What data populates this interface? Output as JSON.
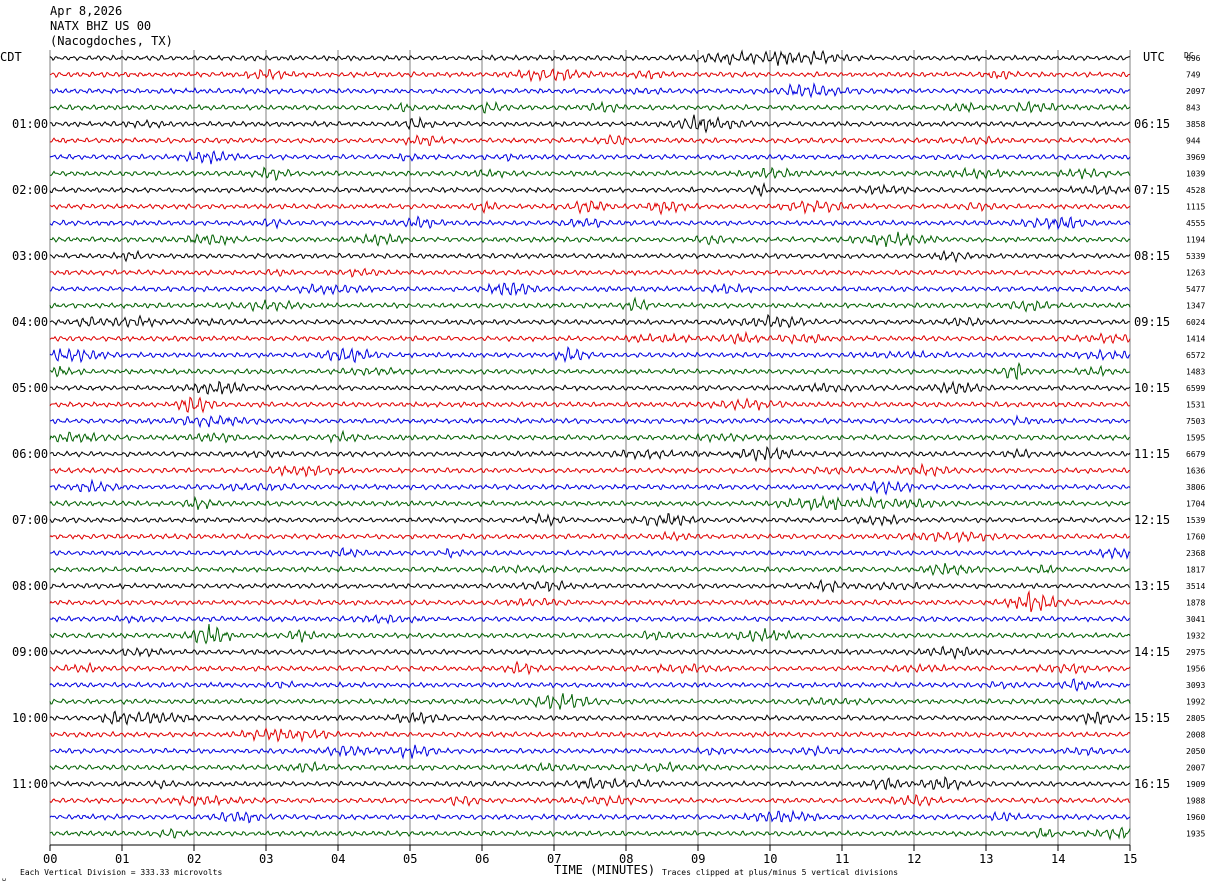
{
  "header": {
    "date": "Apr 8,2026",
    "station": "NATX BHZ US 00",
    "location": "(Nacogdoches, TX)"
  },
  "left_timezone": "CDT",
  "right_timezone": "UTC",
  "dc_label": "DC",
  "footer": {
    "division_note": "Each Vertical Division =  333.33 microvolts",
    "clip_note": "Traces clipped at plus/minus 5 vertical divisions",
    "corner_mark": "␣"
  },
  "colors": {
    "trace_cycle": [
      "#000000",
      "#e00000",
      "#0000e0",
      "#006000"
    ],
    "grid": "#808080"
  },
  "chart_data": {
    "type": "line",
    "subtype": "helicorder",
    "xlabel": "TIME (MINUTES)",
    "x_ticks": [
      "00",
      "01",
      "02",
      "03",
      "04",
      "05",
      "06",
      "07",
      "08",
      "09",
      "10",
      "11",
      "12",
      "13",
      "14",
      "15"
    ],
    "xlim": [
      0,
      15
    ],
    "rows": 48,
    "row_minutes": 15,
    "left_hour_labels": [
      "01:00",
      "02:00",
      "03:00",
      "04:00",
      "05:00",
      "06:00",
      "07:00",
      "08:00",
      "09:00",
      "10:00",
      "11:00"
    ],
    "right_hour_labels": [
      "06:15",
      "07:15",
      "08:15",
      "09:15",
      "10:15",
      "11:15",
      "12:15",
      "13:15",
      "14:15",
      "15:15",
      "16:15"
    ],
    "hour_label_first_row": 4,
    "hour_label_row_step": 4,
    "dc_offsets": [
      "696",
      "749",
      "2097",
      "843",
      "3858",
      "944",
      "3969",
      "1039",
      "4528",
      "1115",
      "4555",
      "1194",
      "5339",
      "1263",
      "5477",
      "1347",
      "6024",
      "1414",
      "6572",
      "1483",
      "6599",
      "1531",
      "7503",
      "1595",
      "6679",
      "1636",
      "3806",
      "1704",
      "1539",
      "1760",
      "2368",
      "1817",
      "3514",
      "1878",
      "3041",
      "1932",
      "2975",
      "1956",
      "3093",
      "1992",
      "2805",
      "2008",
      "2050",
      "2007",
      "1909",
      "1988",
      "1960",
      "1935"
    ],
    "clipping_divisions": 5,
    "microvolts_per_division": 333.33
  }
}
